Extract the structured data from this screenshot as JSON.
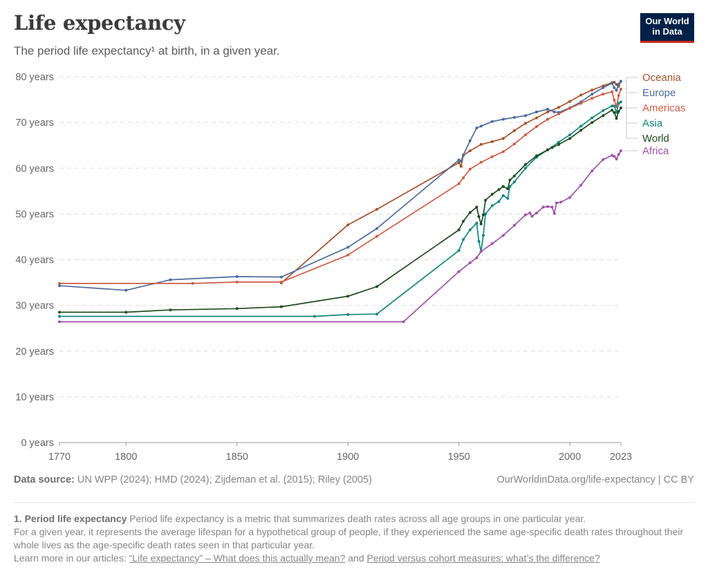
{
  "header": {
    "title": "Life expectancy",
    "subtitle": "The period life expectancy¹ at birth, in a given year.",
    "logo_line1": "Our World",
    "logo_line2": "in Data"
  },
  "footer": {
    "source_label": "Data source:",
    "source_text": " UN WPP (2024); HMD (2024); Zijdeman et al. (2015); Riley (2005)",
    "url_text": "OurWorldinData.org/life-expectancy | CC BY"
  },
  "notes": {
    "heading": "1. Period life expectancy",
    "line1": " Period life expectancy is a metric that summarizes death rates across all age groups in one particular year.",
    "line2": "For a given year, it represents the average lifespan for a hypothetical group of people, if they experienced the same age-specific death rates throughout their whole lives as the age-specific death rates seen in that particular year.",
    "learn_more": "Learn more in our articles: ",
    "link1": "“Life expectancy” – What does this actually mean?",
    "and": " and ",
    "link2": "Period versus cohort measures: what’s the difference?"
  },
  "chart_data": {
    "type": "line",
    "title": "Life expectancy",
    "subtitle": "The period life expectancy at birth, in a given year.",
    "xlabel": "",
    "ylabel": "",
    "xlim": [
      1770,
      2023
    ],
    "ylim": [
      0,
      80
    ],
    "x_ticks": [
      1770,
      1800,
      1850,
      1900,
      1950,
      2000,
      2023
    ],
    "y_ticks": [
      0,
      10,
      20,
      30,
      40,
      50,
      60,
      70,
      80
    ],
    "y_tick_suffix": " years",
    "grid": "horizontal-dashed",
    "legend": "right (direct labels)",
    "series": [
      {
        "name": "Oceania",
        "color": "#a2522b",
        "points": [
          [
            1870,
            34.9
          ],
          [
            1900,
            47.6
          ],
          [
            1913,
            51.0
          ],
          [
            1950,
            61.2
          ],
          [
            1951,
            60.4
          ],
          [
            1952,
            62.8
          ],
          [
            1955,
            63.8
          ],
          [
            1960,
            65.2
          ],
          [
            1965,
            65.8
          ],
          [
            1970,
            66.5
          ],
          [
            1975,
            68.2
          ],
          [
            1980,
            69.8
          ],
          [
            1985,
            71.0
          ],
          [
            1990,
            72.3
          ],
          [
            1995,
            73.3
          ],
          [
            2000,
            74.6
          ],
          [
            2005,
            76.0
          ],
          [
            2010,
            77.1
          ],
          [
            2015,
            78.0
          ],
          [
            2019,
            78.7
          ],
          [
            2020,
            78.8
          ],
          [
            2021,
            78.3
          ],
          [
            2022,
            77.9
          ],
          [
            2023,
            79.0
          ]
        ]
      },
      {
        "name": "Europe",
        "color": "#4c6a9c",
        "points": [
          [
            1770,
            34.3
          ],
          [
            1800,
            33.3
          ],
          [
            1820,
            35.6
          ],
          [
            1850,
            36.3
          ],
          [
            1870,
            36.2
          ],
          [
            1900,
            42.7
          ],
          [
            1913,
            46.8
          ],
          [
            1950,
            61.8
          ],
          [
            1951,
            61.5
          ],
          [
            1952,
            62.9
          ],
          [
            1955,
            66.0
          ],
          [
            1958,
            68.8
          ],
          [
            1960,
            69.2
          ],
          [
            1965,
            70.2
          ],
          [
            1970,
            70.7
          ],
          [
            1975,
            71.1
          ],
          [
            1980,
            71.5
          ],
          [
            1985,
            72.3
          ],
          [
            1990,
            72.9
          ],
          [
            1993,
            72.3
          ],
          [
            1995,
            72.2
          ],
          [
            2000,
            73.2
          ],
          [
            2005,
            74.5
          ],
          [
            2010,
            76.2
          ],
          [
            2015,
            77.6
          ],
          [
            2019,
            78.6
          ],
          [
            2020,
            77.6
          ],
          [
            2021,
            77.0
          ],
          [
            2022,
            78.4
          ],
          [
            2023,
            79.0
          ]
        ]
      },
      {
        "name": "Americas",
        "color": "#c95d46",
        "points": [
          [
            1770,
            34.8
          ],
          [
            1830,
            34.8
          ],
          [
            1850,
            35.1
          ],
          [
            1870,
            35.1
          ],
          [
            1900,
            41.0
          ],
          [
            1913,
            45.1
          ],
          [
            1950,
            56.6
          ],
          [
            1952,
            57.9
          ],
          [
            1955,
            59.8
          ],
          [
            1960,
            61.3
          ],
          [
            1965,
            62.5
          ],
          [
            1970,
            63.6
          ],
          [
            1975,
            65.3
          ],
          [
            1980,
            67.3
          ],
          [
            1985,
            69.1
          ],
          [
            1990,
            70.7
          ],
          [
            1995,
            71.9
          ],
          [
            2000,
            73.1
          ],
          [
            2005,
            74.2
          ],
          [
            2010,
            75.3
          ],
          [
            2015,
            76.2
          ],
          [
            2019,
            76.7
          ],
          [
            2020,
            74.9
          ],
          [
            2021,
            73.5
          ],
          [
            2022,
            75.9
          ],
          [
            2023,
            77.3
          ]
        ]
      },
      {
        "name": "Asia",
        "color": "#11867f",
        "points": [
          [
            1770,
            27.6
          ],
          [
            1885,
            27.6
          ],
          [
            1900,
            28.0
          ],
          [
            1913,
            28.1
          ],
          [
            1950,
            42.0
          ],
          [
            1952,
            44.4
          ],
          [
            1955,
            46.5
          ],
          [
            1958,
            48.0
          ],
          [
            1959,
            44.0
          ],
          [
            1960,
            41.8
          ],
          [
            1961,
            45.3
          ],
          [
            1962,
            50.0
          ],
          [
            1965,
            51.8
          ],
          [
            1968,
            52.7
          ],
          [
            1970,
            54.0
          ],
          [
            1972,
            53.4
          ],
          [
            1973,
            56.0
          ],
          [
            1975,
            57.0
          ],
          [
            1980,
            60.0
          ],
          [
            1985,
            62.4
          ],
          [
            1990,
            64.0
          ],
          [
            1995,
            65.7
          ],
          [
            2000,
            67.3
          ],
          [
            2005,
            69.2
          ],
          [
            2010,
            71.0
          ],
          [
            2015,
            72.6
          ],
          [
            2019,
            73.6
          ],
          [
            2020,
            73.6
          ],
          [
            2021,
            72.2
          ],
          [
            2022,
            74.2
          ],
          [
            2023,
            74.5
          ]
        ]
      },
      {
        "name": "World",
        "color": "#1e4a1e",
        "points": [
          [
            1770,
            28.5
          ],
          [
            1800,
            28.5
          ],
          [
            1820,
            29.0
          ],
          [
            1850,
            29.3
          ],
          [
            1870,
            29.7
          ],
          [
            1900,
            32.0
          ],
          [
            1913,
            34.1
          ],
          [
            1950,
            46.5
          ],
          [
            1952,
            48.4
          ],
          [
            1955,
            50.3
          ],
          [
            1958,
            51.5
          ],
          [
            1959,
            49.4
          ],
          [
            1960,
            47.8
          ],
          [
            1961,
            49.8
          ],
          [
            1962,
            53.0
          ],
          [
            1965,
            54.3
          ],
          [
            1968,
            55.3
          ],
          [
            1970,
            56.0
          ],
          [
            1972,
            55.5
          ],
          [
            1973,
            57.4
          ],
          [
            1975,
            58.3
          ],
          [
            1980,
            60.8
          ],
          [
            1985,
            62.7
          ],
          [
            1990,
            64.0
          ],
          [
            1992,
            64.5
          ],
          [
            1995,
            65.2
          ],
          [
            2000,
            66.5
          ],
          [
            2005,
            68.3
          ],
          [
            2010,
            70.0
          ],
          [
            2015,
            71.5
          ],
          [
            2019,
            72.7
          ],
          [
            2020,
            72.2
          ],
          [
            2021,
            70.9
          ],
          [
            2022,
            72.4
          ],
          [
            2023,
            73.2
          ]
        ]
      },
      {
        "name": "Africa",
        "color": "#a052a8",
        "points": [
          [
            1770,
            26.4
          ],
          [
            1925,
            26.4
          ],
          [
            1950,
            37.4
          ],
          [
            1955,
            39.3
          ],
          [
            1958,
            40.4
          ],
          [
            1960,
            41.8
          ],
          [
            1965,
            43.5
          ],
          [
            1970,
            45.3
          ],
          [
            1975,
            47.5
          ],
          [
            1980,
            49.8
          ],
          [
            1982,
            50.2
          ],
          [
            1983,
            49.5
          ],
          [
            1985,
            50.2
          ],
          [
            1988,
            51.5
          ],
          [
            1990,
            51.6
          ],
          [
            1992,
            51.5
          ],
          [
            1993,
            50.1
          ],
          [
            1994,
            52.4
          ],
          [
            1996,
            52.6
          ],
          [
            2000,
            53.6
          ],
          [
            2005,
            56.3
          ],
          [
            2010,
            59.4
          ],
          [
            2015,
            61.9
          ],
          [
            2019,
            62.8
          ],
          [
            2020,
            62.6
          ],
          [
            2021,
            62.0
          ],
          [
            2022,
            63.0
          ],
          [
            2023,
            63.8
          ]
        ]
      }
    ]
  }
}
